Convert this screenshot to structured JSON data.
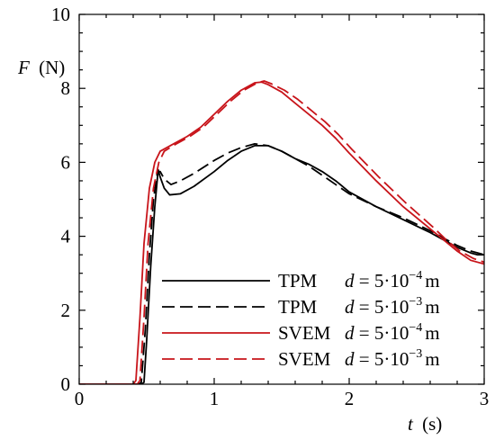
{
  "chart_data": {
    "type": "line",
    "title": "",
    "xlabel_var": "t",
    "xlabel_unit": "(s)",
    "ylabel_var": "F",
    "ylabel_unit": "(N)",
    "xlim": [
      0,
      3
    ],
    "ylim": [
      0,
      10
    ],
    "xticks": [
      0,
      1,
      2,
      3
    ],
    "yticks": [
      0,
      2,
      4,
      6,
      8,
      10
    ],
    "grid": false,
    "legend_position": "bottom-right",
    "series": [
      {
        "name": "TPM",
        "param": "d = 5·10",
        "exp": "−4",
        "unit": "m",
        "color": "#000000",
        "dash": "solid",
        "points": [
          [
            0,
            0
          ],
          [
            0.46,
            0
          ],
          [
            0.48,
            0.05
          ],
          [
            0.5,
            1.2
          ],
          [
            0.53,
            3.2
          ],
          [
            0.56,
            4.8
          ],
          [
            0.585,
            5.8
          ],
          [
            0.6,
            5.6
          ],
          [
            0.63,
            5.3
          ],
          [
            0.67,
            5.12
          ],
          [
            0.75,
            5.15
          ],
          [
            0.85,
            5.35
          ],
          [
            1.0,
            5.75
          ],
          [
            1.1,
            6.05
          ],
          [
            1.2,
            6.3
          ],
          [
            1.3,
            6.45
          ],
          [
            1.4,
            6.45
          ],
          [
            1.5,
            6.3
          ],
          [
            1.6,
            6.1
          ],
          [
            1.7,
            5.95
          ],
          [
            1.8,
            5.75
          ],
          [
            1.9,
            5.5
          ],
          [
            2.0,
            5.2
          ],
          [
            2.2,
            4.8
          ],
          [
            2.4,
            4.45
          ],
          [
            2.6,
            4.1
          ],
          [
            2.7,
            3.9
          ],
          [
            2.8,
            3.7
          ],
          [
            2.9,
            3.55
          ],
          [
            2.95,
            3.5
          ],
          [
            3.0,
            3.5
          ]
        ]
      },
      {
        "name": "TPM",
        "param": "d = 5·10",
        "exp": "−3",
        "unit": "m",
        "color": "#000000",
        "dash": "dashed",
        "points": [
          [
            0,
            0
          ],
          [
            0.44,
            0
          ],
          [
            0.46,
            0.05
          ],
          [
            0.49,
            1.5
          ],
          [
            0.52,
            3.5
          ],
          [
            0.55,
            5.0
          ],
          [
            0.58,
            5.75
          ],
          [
            0.6,
            5.75
          ],
          [
            0.63,
            5.55
          ],
          [
            0.68,
            5.4
          ],
          [
            0.75,
            5.5
          ],
          [
            0.85,
            5.7
          ],
          [
            1.0,
            6.05
          ],
          [
            1.1,
            6.25
          ],
          [
            1.2,
            6.4
          ],
          [
            1.3,
            6.5
          ],
          [
            1.4,
            6.45
          ],
          [
            1.5,
            6.3
          ],
          [
            1.6,
            6.1
          ],
          [
            1.7,
            5.9
          ],
          [
            1.8,
            5.65
          ],
          [
            1.9,
            5.4
          ],
          [
            2.0,
            5.15
          ],
          [
            2.2,
            4.8
          ],
          [
            2.4,
            4.5
          ],
          [
            2.6,
            4.15
          ],
          [
            2.7,
            3.95
          ],
          [
            2.8,
            3.75
          ],
          [
            2.9,
            3.6
          ],
          [
            3.0,
            3.5
          ]
        ]
      },
      {
        "name": "SVEM",
        "param": "d = 5·10",
        "exp": "−4",
        "unit": "m",
        "color": "#c8141a",
        "dash": "solid",
        "points": [
          [
            0,
            0
          ],
          [
            0.4,
            0
          ],
          [
            0.42,
            0.1
          ],
          [
            0.45,
            1.8
          ],
          [
            0.48,
            3.8
          ],
          [
            0.52,
            5.3
          ],
          [
            0.56,
            6.0
          ],
          [
            0.6,
            6.3
          ],
          [
            0.7,
            6.5
          ],
          [
            0.8,
            6.7
          ],
          [
            0.9,
            6.95
          ],
          [
            1.0,
            7.3
          ],
          [
            1.1,
            7.65
          ],
          [
            1.2,
            7.95
          ],
          [
            1.3,
            8.15
          ],
          [
            1.35,
            8.17
          ],
          [
            1.4,
            8.1
          ],
          [
            1.5,
            7.9
          ],
          [
            1.6,
            7.6
          ],
          [
            1.7,
            7.3
          ],
          [
            1.8,
            7.0
          ],
          [
            1.9,
            6.65
          ],
          [
            2.0,
            6.25
          ],
          [
            2.2,
            5.5
          ],
          [
            2.4,
            4.8
          ],
          [
            2.6,
            4.2
          ],
          [
            2.7,
            3.9
          ],
          [
            2.8,
            3.6
          ],
          [
            2.9,
            3.35
          ],
          [
            3.0,
            3.25
          ]
        ]
      },
      {
        "name": "SVEM",
        "param": "d = 5·10",
        "exp": "−3",
        "unit": "m",
        "color": "#c8141a",
        "dash": "dashed",
        "points": [
          [
            0,
            0
          ],
          [
            0.43,
            0
          ],
          [
            0.45,
            0.1
          ],
          [
            0.48,
            1.8
          ],
          [
            0.51,
            3.8
          ],
          [
            0.55,
            5.3
          ],
          [
            0.59,
            6.0
          ],
          [
            0.63,
            6.3
          ],
          [
            0.72,
            6.5
          ],
          [
            0.82,
            6.7
          ],
          [
            0.92,
            6.95
          ],
          [
            1.02,
            7.3
          ],
          [
            1.12,
            7.65
          ],
          [
            1.22,
            7.95
          ],
          [
            1.32,
            8.15
          ],
          [
            1.37,
            8.2
          ],
          [
            1.42,
            8.13
          ],
          [
            1.52,
            7.95
          ],
          [
            1.62,
            7.7
          ],
          [
            1.72,
            7.4
          ],
          [
            1.82,
            7.1
          ],
          [
            1.92,
            6.75
          ],
          [
            2.02,
            6.35
          ],
          [
            2.22,
            5.6
          ],
          [
            2.42,
            4.9
          ],
          [
            2.62,
            4.25
          ],
          [
            2.72,
            3.9
          ],
          [
            2.82,
            3.6
          ],
          [
            2.92,
            3.4
          ],
          [
            3.0,
            3.3
          ]
        ]
      }
    ]
  }
}
